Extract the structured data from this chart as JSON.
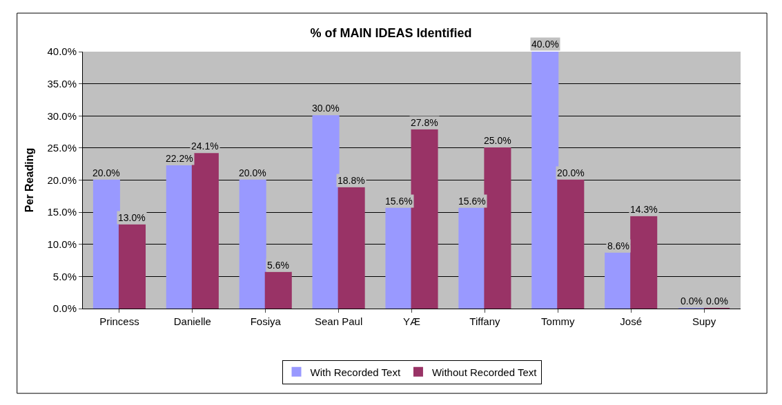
{
  "chart_data": {
    "type": "bar",
    "title": "% of MAIN IDEAS Identified",
    "ylabel": "Per Reading",
    "categories": [
      "Princess",
      "Danielle",
      "Fosiya",
      "Sean Paul",
      "YÆ",
      "Tiffany",
      "Tommy",
      "José",
      "Supy"
    ],
    "series": [
      {
        "name": "With Recorded Text",
        "color": "#9999ff",
        "values": [
          20.0,
          22.2,
          20.0,
          30.0,
          15.6,
          15.6,
          40.0,
          8.6,
          0.0
        ],
        "value_labels": [
          "20.0%",
          "22.2%",
          "20.0%",
          "30.0%",
          "15.6%",
          "15.6%",
          "40.0%",
          "8.6%",
          "0.0%"
        ]
      },
      {
        "name": "Without Recorded Text",
        "color": "#993366",
        "values": [
          13.0,
          24.1,
          5.6,
          18.8,
          27.8,
          25.0,
          20.0,
          14.3,
          0.0
        ],
        "value_labels": [
          "13.0%",
          "24.1%",
          "5.6%",
          "18.8%",
          "27.8%",
          "25.0%",
          "20.0%",
          "14.3%",
          "0.0%"
        ]
      }
    ],
    "ylim": [
      0,
      40
    ],
    "yticks": [
      {
        "value": 0,
        "label": "0.0%"
      },
      {
        "value": 5,
        "label": "5.0%"
      },
      {
        "value": 10,
        "label": "10.0%"
      },
      {
        "value": 15,
        "label": "15.0%"
      },
      {
        "value": 20,
        "label": "20.0%"
      },
      {
        "value": 25,
        "label": "25.0%"
      },
      {
        "value": 30,
        "label": "30.0%"
      },
      {
        "value": 35,
        "label": "35.0%"
      },
      {
        "value": 40,
        "label": "40.0%"
      }
    ],
    "grid": "y",
    "legend": "bottom"
  }
}
